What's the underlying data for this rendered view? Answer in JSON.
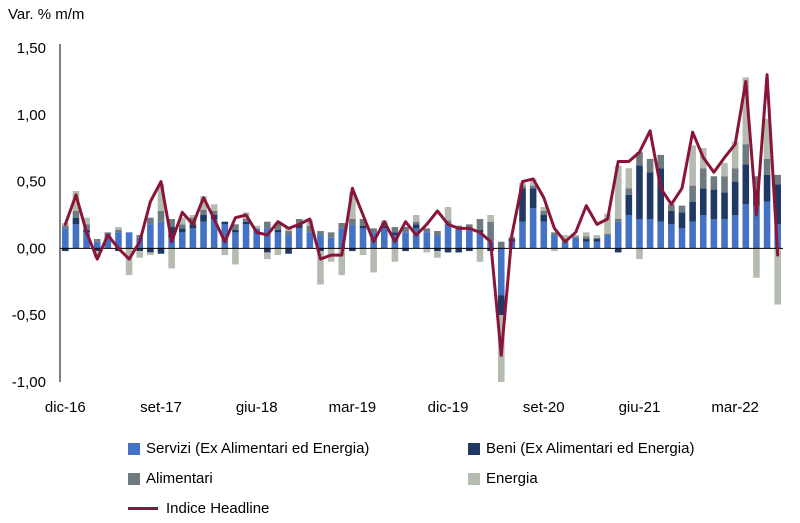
{
  "chart_data": {
    "type": "bar",
    "stacked": true,
    "ylabel": "Var. % m/m",
    "ylim": [
      -1.0,
      1.5
    ],
    "yticks": [
      "-1,00",
      "-0,50",
      "0,00",
      "0,50",
      "1,00",
      "1,50"
    ],
    "ytick_values": [
      -1.0,
      -0.5,
      0.0,
      0.5,
      1.0,
      1.5
    ],
    "xtick_labels": [
      {
        "label": "dic-16",
        "index": 0
      },
      {
        "label": "set-17",
        "index": 9
      },
      {
        "label": "giu-18",
        "index": 18
      },
      {
        "label": "mar-19",
        "index": 27
      },
      {
        "label": "dic-19",
        "index": 36
      },
      {
        "label": "set-20",
        "index": 45
      },
      {
        "label": "giu-21",
        "index": 54
      },
      {
        "label": "mar-22",
        "index": 63
      }
    ],
    "n_periods": 68,
    "colors": {
      "servizi": "#4472C4",
      "beni": "#1F3864",
      "alimentari": "#6D7A80",
      "energia": "#B4BBAF",
      "headline": "#8B1538"
    },
    "series": [
      {
        "name": "Servizi (Ex Alimentari ed Energia)",
        "key": "servizi",
        "values": [
          0.15,
          0.18,
          0.12,
          0.05,
          0.1,
          0.12,
          0.12,
          0.08,
          0.18,
          0.2,
          0.08,
          0.12,
          0.15,
          0.2,
          0.22,
          0.18,
          0.12,
          0.18,
          0.15,
          0.15,
          0.12,
          0.1,
          0.15,
          0.12,
          0.1,
          0.08,
          0.15,
          0.18,
          0.15,
          0.12,
          0.15,
          0.1,
          0.12,
          0.15,
          0.12,
          0.1,
          0.18,
          0.15,
          0.15,
          0.12,
          0.05,
          -0.35,
          0.05,
          0.2,
          0.3,
          0.2,
          0.1,
          0.05,
          0.08,
          0.05,
          0.05,
          0.1,
          0.2,
          0.25,
          0.22,
          0.22,
          0.2,
          0.18,
          0.15,
          0.2,
          0.25,
          0.22,
          0.22,
          0.25,
          0.33,
          0.32,
          0.35,
          0.18
        ]
      },
      {
        "name": "Beni (Ex Alimentari ed Energia)",
        "key": "beni",
        "values": [
          -0.02,
          0.05,
          0.02,
          -0.02,
          0.0,
          -0.02,
          0.0,
          -0.02,
          -0.03,
          -0.04,
          0.08,
          0.03,
          0.03,
          0.05,
          0.03,
          0.02,
          0.02,
          0.02,
          0.0,
          -0.03,
          0.02,
          -0.04,
          0.03,
          0.0,
          -0.02,
          0.0,
          0.0,
          -0.02,
          0.02,
          0.0,
          0.02,
          0.02,
          -0.02,
          0.03,
          0.0,
          -0.02,
          -0.03,
          -0.03,
          -0.02,
          0.02,
          -0.02,
          -0.15,
          0.02,
          0.25,
          0.15,
          0.05,
          0.0,
          0.0,
          0.0,
          0.02,
          0.02,
          0.0,
          -0.03,
          0.15,
          0.4,
          0.35,
          0.4,
          0.1,
          0.12,
          0.15,
          0.2,
          0.22,
          0.2,
          0.25,
          0.3,
          0.12,
          0.2,
          0.3
        ]
      },
      {
        "name": "Alimentari",
        "key": "alimentari",
        "values": [
          0.02,
          0.05,
          0.04,
          0.02,
          0.02,
          0.02,
          0.0,
          0.02,
          0.05,
          0.08,
          0.06,
          0.03,
          0.05,
          0.04,
          0.03,
          0.0,
          0.04,
          0.02,
          0.0,
          0.05,
          0.05,
          0.03,
          0.04,
          0.05,
          0.03,
          0.04,
          0.04,
          0.04,
          0.05,
          0.03,
          0.02,
          0.04,
          0.04,
          0.02,
          0.03,
          0.03,
          0.03,
          0.02,
          0.03,
          0.08,
          0.15,
          0.05,
          0.01,
          0.02,
          0.02,
          0.03,
          0.02,
          0.02,
          0.01,
          0.02,
          0.01,
          0.01,
          0.02,
          0.05,
          0.1,
          0.1,
          0.1,
          0.05,
          0.05,
          0.12,
          0.15,
          0.1,
          0.12,
          0.1,
          0.15,
          0.1,
          0.12,
          0.07
        ]
      },
      {
        "name": "Energia",
        "key": "energia",
        "values": [
          0.02,
          0.15,
          0.05,
          -0.05,
          0.0,
          0.02,
          -0.2,
          -0.05,
          -0.02,
          0.2,
          -0.15,
          0.05,
          0.02,
          0.1,
          0.05,
          -0.05,
          -0.12,
          0.05,
          0.02,
          -0.05,
          -0.05,
          0.02,
          0.0,
          0.04,
          -0.25,
          -0.1,
          -0.2,
          0.2,
          -0.05,
          -0.18,
          0.02,
          -0.1,
          0.0,
          0.05,
          -0.03,
          -0.05,
          0.1,
          0.0,
          0.0,
          -0.1,
          0.05,
          -0.5,
          0.01,
          0.02,
          0.05,
          0.03,
          -0.02,
          0.03,
          0.01,
          0.03,
          0.02,
          0.15,
          0.4,
          0.15,
          -0.08,
          0.0,
          0.0,
          0.0,
          0.0,
          0.3,
          0.15,
          0.0,
          0.1,
          0.2,
          0.5,
          -0.22,
          0.3,
          -0.42
        ]
      },
      {
        "name": "Indice Headline",
        "key": "headline",
        "type": "line",
        "values": [
          0.18,
          0.4,
          0.12,
          -0.08,
          0.1,
          0.0,
          -0.08,
          0.05,
          0.35,
          0.5,
          0.05,
          0.27,
          0.18,
          0.38,
          0.22,
          0.05,
          0.23,
          0.25,
          0.12,
          0.1,
          0.2,
          0.15,
          0.18,
          0.22,
          -0.08,
          -0.05,
          -0.05,
          0.45,
          0.25,
          0.05,
          0.2,
          0.05,
          0.2,
          0.1,
          0.18,
          0.28,
          0.18,
          0.15,
          0.15,
          0.12,
          0.05,
          -0.8,
          0.1,
          0.5,
          0.52,
          0.38,
          0.15,
          0.05,
          0.12,
          0.32,
          0.18,
          0.22,
          0.65,
          0.65,
          0.72,
          0.88,
          0.45,
          0.33,
          0.45,
          0.87,
          0.68,
          0.57,
          0.68,
          0.78,
          1.25,
          0.25,
          1.3,
          -0.05
        ]
      }
    ],
    "legend": [
      {
        "label": "Servizi (Ex Alimentari ed Energia)",
        "key": "servizi"
      },
      {
        "label": "Beni (Ex Alimentari ed Energia)",
        "key": "beni"
      },
      {
        "label": "Alimentari",
        "key": "alimentari"
      },
      {
        "label": "Energia",
        "key": "energia"
      },
      {
        "label": "Indice Headline",
        "key": "headline"
      }
    ]
  }
}
